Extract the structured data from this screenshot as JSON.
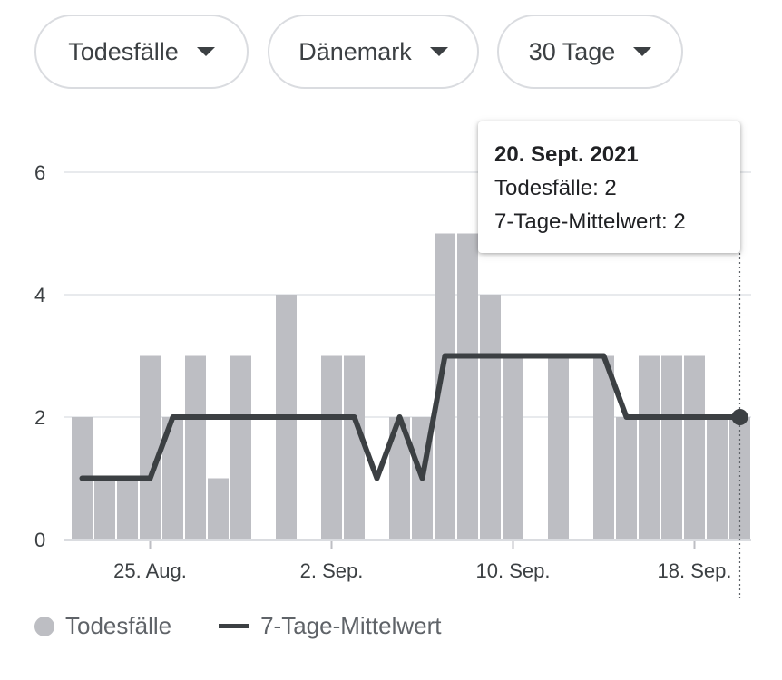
{
  "filters": {
    "metric": "Todesfälle",
    "region": "Dänemark",
    "range": "30 Tage"
  },
  "tooltip": {
    "date": "20. Sept. 2021",
    "line1": "Todesfälle: 2",
    "line2": "7-Tage-Mittelwert: 2"
  },
  "legend": {
    "bars": "Todesfälle",
    "line": "7-Tage-Mittelwert"
  },
  "colors": {
    "bar": "#bdbec3",
    "line": "#3c4043",
    "grid": "#e8eaed",
    "text": "#3c4043"
  },
  "chart_data": {
    "type": "bar",
    "x": [
      "2021-08-22",
      "2021-08-23",
      "2021-08-24",
      "2021-08-25",
      "2021-08-26",
      "2021-08-27",
      "2021-08-28",
      "2021-08-29",
      "2021-08-30",
      "2021-08-31",
      "2021-09-01",
      "2021-09-02",
      "2021-09-03",
      "2021-09-04",
      "2021-09-05",
      "2021-09-06",
      "2021-09-07",
      "2021-09-08",
      "2021-09-09",
      "2021-09-10",
      "2021-09-11",
      "2021-09-12",
      "2021-09-13",
      "2021-09-14",
      "2021-09-15",
      "2021-09-16",
      "2021-09-17",
      "2021-09-18",
      "2021-09-19",
      "2021-09-20"
    ],
    "xtick_labels": [
      "25. Aug.",
      "2. Sep.",
      "10. Sep.",
      "18. Sep."
    ],
    "xtick_dates": [
      "2021-08-25",
      "2021-09-02",
      "2021-09-10",
      "2021-09-18"
    ],
    "series": [
      {
        "name": "Todesfälle",
        "type": "bar",
        "values": [
          2,
          1,
          1,
          3,
          2,
          3,
          1,
          3,
          0,
          4,
          0,
          3,
          3,
          0,
          2,
          2,
          5,
          5,
          4,
          3,
          0,
          3,
          0,
          3,
          2,
          3,
          3,
          3,
          2,
          2
        ]
      },
      {
        "name": "7-Tage-Mittelwert",
        "type": "line",
        "values": [
          1,
          1,
          1,
          1,
          2,
          2,
          2,
          2,
          2,
          2,
          2,
          2,
          2,
          1,
          2,
          1,
          3,
          3,
          3,
          3,
          3,
          3,
          3,
          3,
          2,
          2,
          2,
          2,
          2,
          2
        ]
      }
    ],
    "yticks": [
      0,
      2,
      4,
      6
    ],
    "ylim": [
      0,
      6
    ],
    "grid": true,
    "highlight_date": "2021-09-20"
  }
}
